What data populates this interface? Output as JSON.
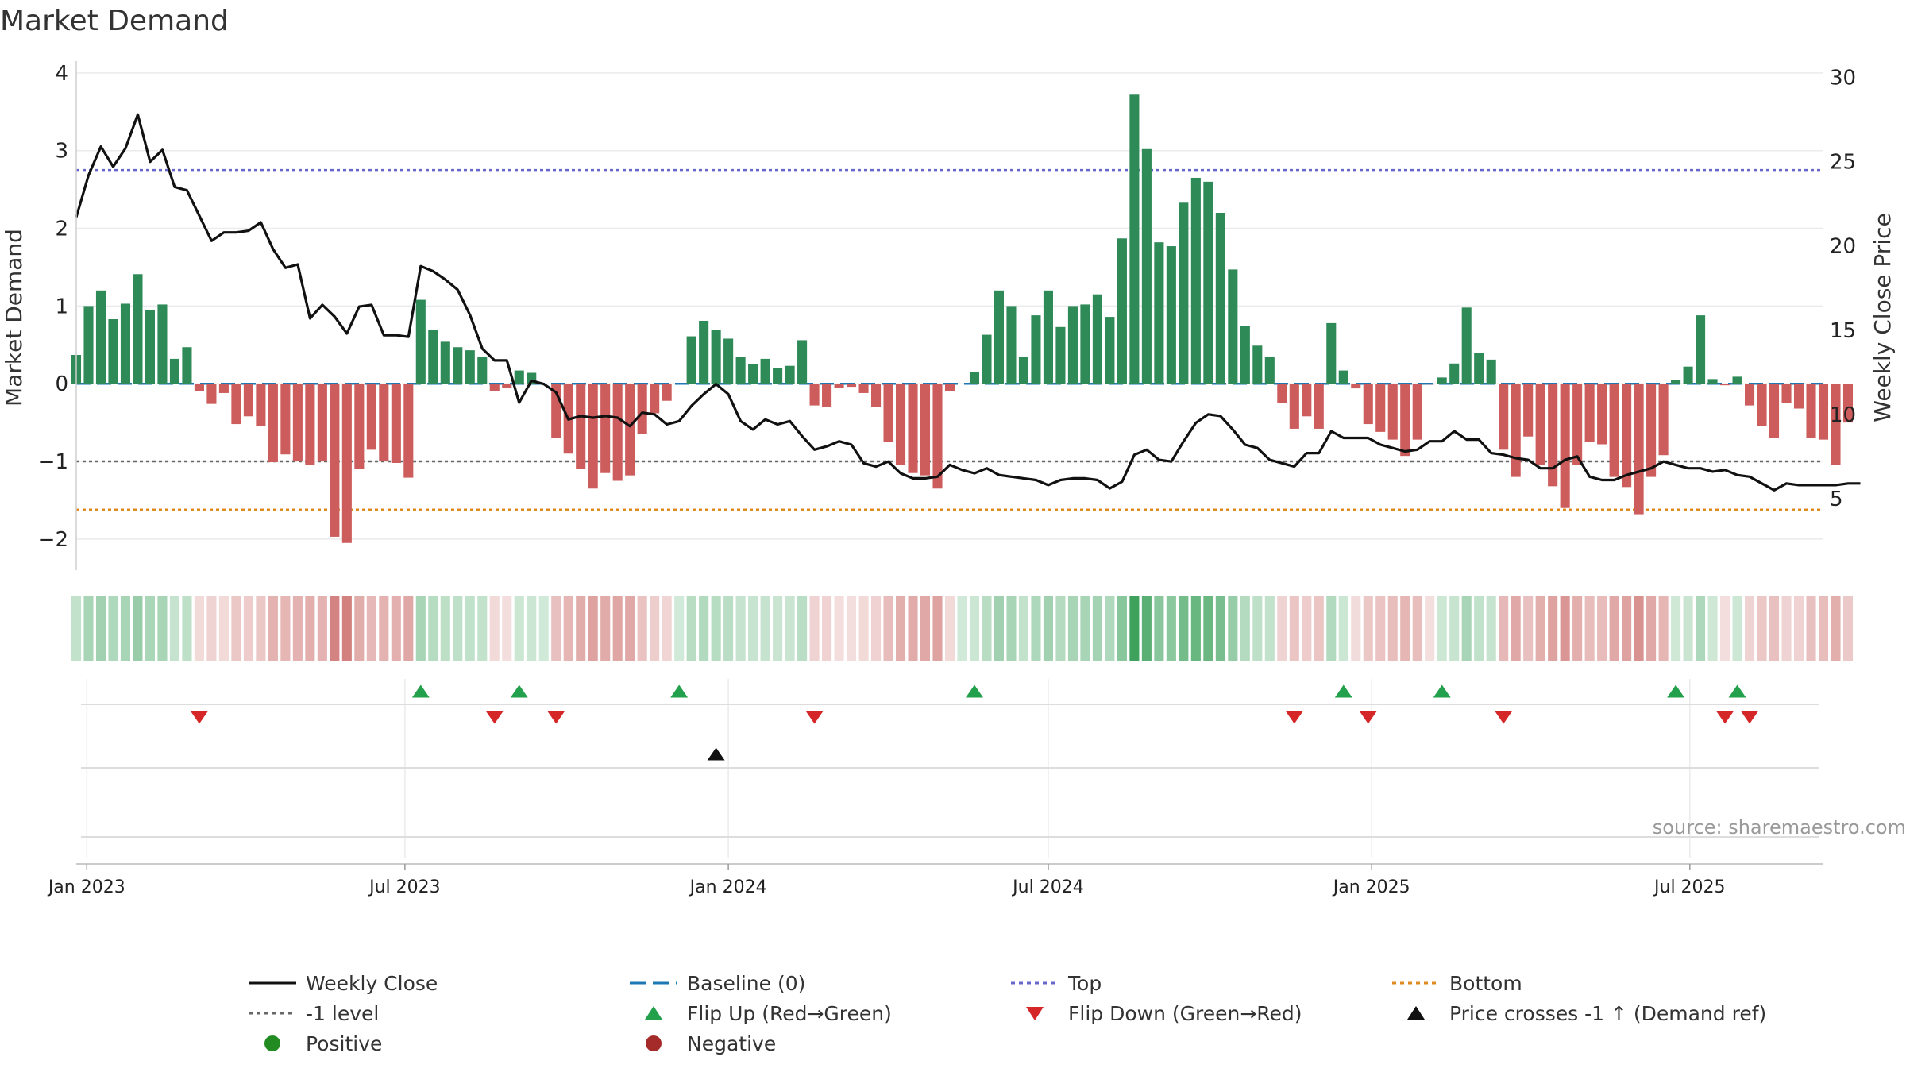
{
  "chart_data": {
    "type": "bar",
    "title": "Market Demand",
    "ylabel": "Market Demand",
    "y2label": "Weekly Close Price",
    "ylim": [
      -2.4,
      4.05
    ],
    "y2lim": [
      0.75,
      30.5
    ],
    "yticks": [
      4,
      3,
      2,
      1,
      0,
      -1,
      -2
    ],
    "yticks_labels": [
      "4",
      "3",
      "2",
      "1",
      "0",
      "−1",
      "−2"
    ],
    "y2ticks": [
      30,
      25,
      20,
      15,
      10,
      5
    ],
    "y2ticks_labels": [
      "30",
      "25",
      "20",
      "15",
      "10",
      "5"
    ],
    "x_start": "2022-12-26",
    "x_end": "2025-09-15",
    "x_step_days": 7,
    "xticks": [
      "2023-01-01",
      "2023-07-01",
      "2024-01-01",
      "2024-07-01",
      "2025-01-01",
      "2025-07-01"
    ],
    "xticks_labels": [
      "Jan 2023",
      "Jul 2023",
      "Jan 2024",
      "Jul 2024",
      "Jan 2025",
      "Jul 2025"
    ],
    "levels": {
      "top": 2.75,
      "bottom": -1.62,
      "minus_one": -1,
      "baseline": 0
    },
    "demand_values": [
      0.37,
      1.0,
      1.2,
      0.83,
      1.03,
      1.41,
      0.95,
      1.02,
      0.32,
      0.47,
      -0.1,
      -0.26,
      -0.12,
      -0.52,
      -0.42,
      -0.55,
      -1.01,
      -0.91,
      -1.0,
      -1.05,
      -1.0,
      -1.97,
      -2.05,
      -1.1,
      -0.85,
      -1.0,
      -1.02,
      -1.21,
      1.08,
      0.69,
      0.54,
      0.47,
      0.43,
      0.35,
      -0.1,
      -0.05,
      0.17,
      0.14,
      0.0,
      -0.7,
      -0.9,
      -1.1,
      -1.35,
      -1.15,
      -1.25,
      -1.18,
      -0.65,
      -0.38,
      -0.22,
      0.0,
      0.61,
      0.81,
      0.69,
      0.58,
      0.34,
      0.25,
      0.32,
      0.2,
      0.23,
      0.56,
      -0.28,
      -0.3,
      -0.05,
      -0.04,
      -0.12,
      -0.3,
      -0.75,
      -1.05,
      -1.15,
      -1.18,
      -1.35,
      -0.1,
      0.0,
      0.15,
      0.63,
      1.2,
      1.0,
      0.35,
      0.88,
      1.2,
      0.73,
      1.0,
      1.02,
      1.15,
      0.86,
      1.87,
      3.72,
      3.02,
      1.82,
      1.77,
      2.33,
      2.65,
      2.6,
      2.2,
      1.47,
      0.74,
      0.49,
      0.35,
      -0.25,
      -0.58,
      -0.42,
      -0.58,
      0.78,
      0.17,
      -0.06,
      -0.52,
      -0.62,
      -0.72,
      -0.93,
      -0.72,
      -0.01,
      0.08,
      0.26,
      0.98,
      0.4,
      0.31,
      -0.85,
      -1.2,
      -0.68,
      -1.05,
      -1.32,
      -1.6,
      -1.05,
      -0.75,
      -0.78,
      -1.2,
      -1.33,
      -1.68,
      -1.2,
      -0.92,
      0.05,
      0.22,
      0.88,
      0.06,
      -0.02,
      0.09,
      -0.28,
      -0.55,
      -0.7,
      -0.25,
      -0.32,
      -0.7,
      -0.72,
      -1.05,
      -0.5
    ],
    "series": [
      {
        "name": "Weekly Close",
        "axis": "right",
        "color": "#111111",
        "values": [
          21.7,
          24.2,
          25.9,
          24.7,
          25.8,
          27.8,
          25.0,
          25.7,
          23.5,
          23.3,
          21.8,
          20.3,
          20.8,
          20.8,
          20.9,
          21.4,
          19.8,
          18.7,
          18.9,
          15.7,
          16.5,
          15.8,
          14.8,
          16.4,
          16.5,
          14.7,
          14.7,
          14.6,
          18.8,
          18.5,
          18.0,
          17.4,
          15.9,
          13.9,
          13.2,
          13.2,
          10.7,
          12.0,
          11.8,
          11.3,
          9.7,
          9.9,
          9.8,
          9.9,
          9.8,
          9.3,
          10.1,
          10.0,
          9.4,
          9.6,
          10.5,
          11.2,
          11.8,
          11.2,
          9.6,
          9.1,
          9.7,
          9.4,
          9.6,
          8.7,
          7.9,
          8.1,
          8.4,
          8.2,
          7.1,
          6.9,
          7.2,
          6.5,
          6.2,
          6.2,
          6.3,
          7.0,
          6.7,
          6.5,
          6.8,
          6.4,
          6.3,
          6.2,
          6.1,
          5.8,
          6.1,
          6.2,
          6.2,
          6.1,
          5.6,
          6.0,
          7.6,
          7.9,
          7.3,
          7.2,
          8.4,
          9.5,
          10.0,
          9.9,
          9.1,
          8.2,
          8.0,
          7.3,
          7.1,
          6.9,
          7.7,
          7.7,
          9.0,
          8.6,
          8.6,
          8.6,
          8.2,
          8.0,
          7.8,
          7.9,
          8.4,
          8.4,
          9.0,
          8.5,
          8.5,
          7.7,
          7.6,
          7.4,
          7.3,
          6.8,
          6.8,
          7.3,
          7.5,
          6.3,
          6.1,
          6.1,
          6.4,
          6.6,
          6.8,
          7.2,
          7.0,
          6.8,
          6.8,
          6.6,
          6.7,
          6.4,
          6.3,
          5.9,
          5.5,
          5.9,
          5.8,
          5.8,
          5.8,
          5.8,
          5.9,
          5.9
        ]
      }
    ],
    "flip_up_indices": [
      28,
      36,
      49,
      73,
      103,
      111,
      130,
      135
    ],
    "flip_down_indices": [
      10,
      34,
      39,
      60,
      99,
      105,
      116,
      134,
      136
    ],
    "price_cross_indices": [
      52
    ],
    "legend": [
      [
        "Weekly Close",
        "Baseline (0)",
        "Top",
        "Bottom"
      ],
      [
        "-1 level",
        "Flip Up (Red→Green)",
        "Flip Down (Green→Red)",
        "Price crosses -1 ↑ (Demand ref)"
      ],
      [
        "Positive",
        "Negative"
      ]
    ],
    "source": "source: sharemaestro.com",
    "colors": {
      "positive": "#2e8a57",
      "negative": "#cd5c5c",
      "price": "#111111",
      "baseline": "#1f77b4",
      "top": "#6666cc",
      "bottom": "#e08a1e",
      "minus_one": "#666666",
      "flip_up": "#22a04b",
      "flip_down": "#d62728",
      "cross": "#111111",
      "legend_positive": "#228b22",
      "legend_negative": "#a52a2a"
    }
  }
}
